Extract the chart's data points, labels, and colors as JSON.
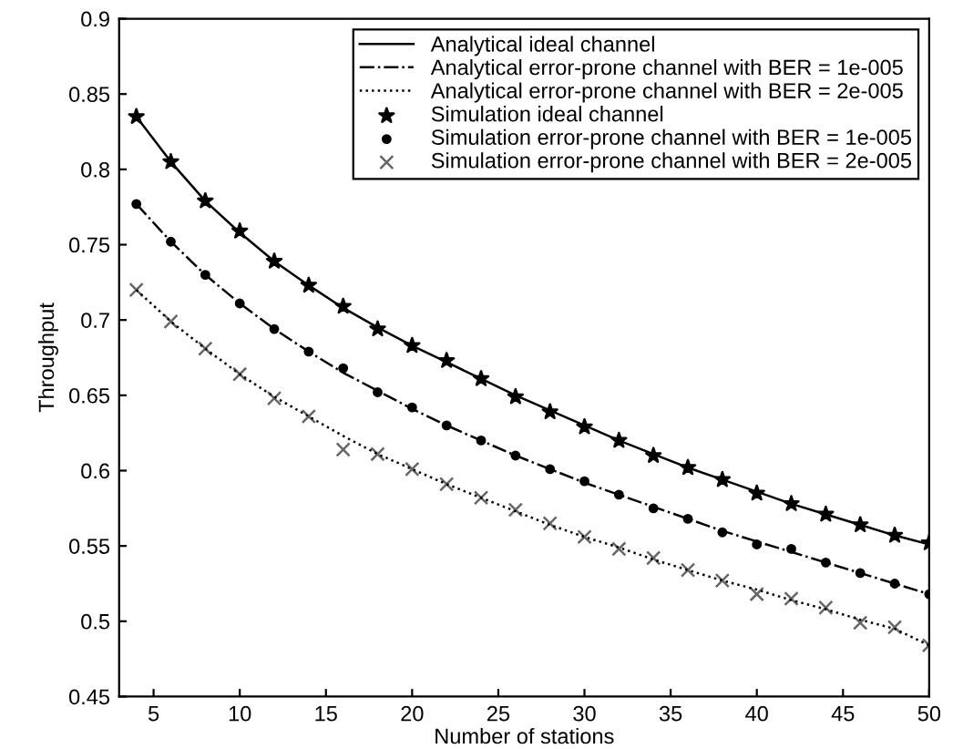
{
  "chart_data": {
    "type": "line",
    "xlabel": "Number of stations",
    "ylabel": "Throughput",
    "xlim": [
      3,
      50
    ],
    "xticks": [
      5,
      10,
      15,
      20,
      25,
      30,
      35,
      40,
      45,
      50
    ],
    "ylim": [
      0.45,
      0.9
    ],
    "yticks": [
      0.45,
      0.5,
      0.55,
      0.6,
      0.65,
      0.7,
      0.75,
      0.8,
      0.85,
      0.9
    ],
    "grid": false,
    "legend": "top right",
    "x": [
      4,
      6,
      8,
      10,
      12,
      14,
      16,
      18,
      20,
      22,
      24,
      26,
      28,
      30,
      32,
      34,
      36,
      38,
      40,
      42,
      44,
      46,
      48,
      50
    ],
    "series": [
      {
        "name": "Analytical ideal channel",
        "line_style": "solid",
        "marker": "none",
        "color": "#000000",
        "values": [
          0.835,
          0.805,
          0.779,
          0.758,
          0.739,
          0.723,
          0.708,
          0.695,
          0.683,
          0.672,
          0.661,
          0.65,
          0.64,
          0.63,
          0.62,
          0.611,
          0.602,
          0.594,
          0.586,
          0.578,
          0.571,
          0.564,
          0.557,
          0.551
        ]
      },
      {
        "name": "Analytical error-prone channel with BER = 1e-005",
        "line_style": "dashdot",
        "marker": "none",
        "color": "#000000",
        "values": [
          0.777,
          0.752,
          0.73,
          0.711,
          0.694,
          0.679,
          0.665,
          0.653,
          0.641,
          0.63,
          0.62,
          0.61,
          0.601,
          0.592,
          0.584,
          0.576,
          0.568,
          0.56,
          0.553,
          0.546,
          0.539,
          0.532,
          0.525,
          0.518
        ]
      },
      {
        "name": "Analytical error-prone channel with BER = 2e-005",
        "line_style": "dotted",
        "marker": "none",
        "color": "#000000",
        "values": [
          0.72,
          0.699,
          0.681,
          0.664,
          0.649,
          0.636,
          0.623,
          0.611,
          0.601,
          0.591,
          0.582,
          0.573,
          0.564,
          0.556,
          0.549,
          0.541,
          0.534,
          0.527,
          0.521,
          0.514,
          0.508,
          0.501,
          0.495,
          0.484
        ]
      },
      {
        "name": "Simulation ideal channel",
        "type": "scatter",
        "marker": "star",
        "color": "#000000",
        "values": [
          0.835,
          0.805,
          0.779,
          0.759,
          0.739,
          0.723,
          0.709,
          0.694,
          0.683,
          0.673,
          0.661,
          0.649,
          0.639,
          0.629,
          0.62,
          0.61,
          0.602,
          0.594,
          0.585,
          0.578,
          0.571,
          0.564,
          0.557,
          0.552
        ]
      },
      {
        "name": "Simulation error-prone channel with BER = 1e-005",
        "type": "scatter",
        "marker": "circle",
        "color": "#000000",
        "values": [
          0.777,
          0.752,
          0.73,
          0.711,
          0.694,
          0.679,
          0.668,
          0.652,
          0.642,
          0.63,
          0.62,
          0.61,
          0.601,
          0.593,
          0.584,
          0.575,
          0.568,
          0.559,
          0.551,
          0.548,
          0.539,
          0.532,
          0.525,
          0.518
        ]
      },
      {
        "name": "Simulation error-prone channel with BER = 2e-005",
        "type": "scatter",
        "marker": "cross",
        "color": "#666666",
        "values": [
          0.72,
          0.699,
          0.681,
          0.664,
          0.648,
          0.636,
          0.614,
          0.611,
          0.601,
          0.591,
          0.582,
          0.574,
          0.565,
          0.556,
          0.548,
          0.542,
          0.534,
          0.527,
          0.518,
          0.515,
          0.509,
          0.499,
          0.496,
          0.484
        ]
      }
    ]
  }
}
